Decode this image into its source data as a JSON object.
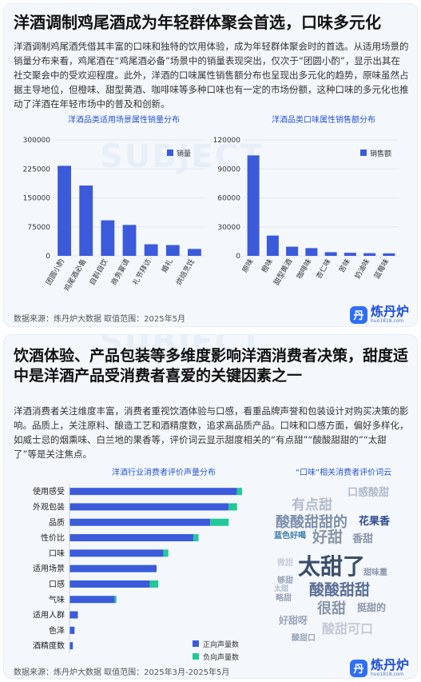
{
  "section1": {
    "title": "洋酒调制鸡尾酒成为年轻群体聚会首选，口味多元化",
    "paragraph": "洋酒调制鸡尾酒凭借其丰富的口味和独特的饮用体验，成为年轻群体聚会时的首选。从适用场景的销量分布来看，鸡尾酒在“鸡尾酒必备”场景中的销量表现突出，仅次于“团圆小酌”，显示出其在社交聚会中的受欢迎程度。此外，洋酒的口味属性销售额分布也呈现出多元化的趋势，原味虽然占据主导地位，但橙味、甜型黄酒、咖啡味等多种口味也有一定的市场份额，这种口味的多元化也推动了洋酒在年轻市场中的普及和创新。",
    "footer": "数据来源：炼丹炉大数据    取值范围：2025年5月"
  },
  "section2": {
    "title": "饮酒体验、产品包装等多维度影响洋酒消费者决策，甜度适中是洋酒产品受消费者喜爱的关键因素之一",
    "paragraph": "洋酒消费者关注维度丰富，消费者重视饮酒体验与口感，看重品牌声誉和包装设计对购买决策的影响。品质上，关注原料、酿造工艺和酒精度数，追求高品质产品。口味和口感方面，偏好多样化，如威士忌的烟熏味、白兰地的果香等，评价词云显示甜度相关的“有点甜”“酸酸甜甜的”“太甜了”等是关注焦点。",
    "footer": "数据来源：炼丹炉大数据    取值范围：2025年3月-2025年5月"
  },
  "logo": {
    "icon": "丹",
    "name": "炼丹炉",
    "url": "huo1818.com"
  },
  "watermark": "SUBJECT",
  "chart_data": [
    {
      "type": "bar",
      "title": "洋酒品类适用场景属性销量分布",
      "legend": "销量",
      "categories": [
        "团圆小酌",
        "鸡尾酒必备",
        "自斟自饮",
        "商务宴请",
        "礼节拜访",
        "婚礼",
        "烘焙烹饪"
      ],
      "values": [
        233000,
        182000,
        92000,
        80000,
        30000,
        28000,
        18000
      ],
      "yticks": [
        "300000",
        "225000",
        "150000",
        "75000",
        "0"
      ],
      "ylim": [
        0,
        300000
      ],
      "color": "#3b5bdb"
    },
    {
      "type": "bar",
      "title": "洋酒品类口味属性销售额分布",
      "legend": "销售额",
      "categories": [
        "原味",
        "橙味",
        "甜型黄酒",
        "咖啡味",
        "杏仁味",
        "苦味",
        "奶油味",
        "蓝莓味"
      ],
      "values": [
        104000,
        21000,
        9500,
        8000,
        3800,
        3200,
        2800,
        2600
      ],
      "yticks": [
        "120000",
        "90000",
        "60000",
        "30000",
        "0"
      ],
      "ylim": [
        0,
        120000
      ],
      "color": "#3b5bdb"
    },
    {
      "type": "bar",
      "orientation": "horizontal",
      "stacked": true,
      "title": "洋酒行业消费者评价声量分布",
      "categories": [
        "使用感受",
        "外观包装",
        "品质",
        "性价比",
        "口味",
        "适用场景",
        "口感",
        "气味",
        "适用人群",
        "色泽",
        "酒精度数"
      ],
      "series": [
        {
          "name": "正向声量数",
          "values": [
            100,
            95,
            84,
            74,
            56,
            52,
            48,
            27,
            5,
            3,
            2
          ],
          "color": "#3b5bdb"
        },
        {
          "name": "负向声量数",
          "values": [
            3,
            5,
            11,
            3,
            3,
            0,
            5,
            1,
            0,
            0,
            0
          ],
          "color": "#20c997"
        }
      ]
    }
  ],
  "wordcloud": {
    "title": "“口味”相关消费者评价词云",
    "words": [
      {
        "text": "有点甜",
        "color": "#b3bccb",
        "size": 17
      },
      {
        "text": "口感酸甜",
        "color": "#b3bccb",
        "size": 13
      },
      {
        "text": "酸酸甜甜的",
        "color": "#7e8faa",
        "size": 18
      },
      {
        "text": "花果香",
        "color": "#2f4a8a",
        "size": 13
      },
      {
        "text": "蓝色好喝",
        "color": "#3a7ba8",
        "size": 10
      },
      {
        "text": "好甜",
        "color": "#8a95a8",
        "size": 19
      },
      {
        "text": "香甜",
        "color": "#8a95a8",
        "size": 13
      },
      {
        "text": "微甜",
        "color": "#c9ced8",
        "size": 10
      },
      {
        "text": "太甜了",
        "color": "#3c4d6b",
        "size": 28
      },
      {
        "text": "甜味重",
        "color": "#8a95a8",
        "size": 10
      },
      {
        "text": "够甜",
        "color": "#9aa4b6",
        "size": 10
      },
      {
        "text": "太甜",
        "color": "#b3bccb",
        "size": 9
      },
      {
        "text": "略甜",
        "color": "#9aa4b6",
        "size": 10
      },
      {
        "text": "酸酸甜甜",
        "color": "#5b6f96",
        "size": 19
      },
      {
        "text": "很甜",
        "color": "#8a95a8",
        "size": 18
      },
      {
        "text": "挺甜的",
        "color": "#8a95a8",
        "size": 12
      },
      {
        "text": "好甜呀",
        "color": "#9aa4b6",
        "size": 12
      },
      {
        "text": "酸甜可口",
        "color": "#c4cad6",
        "size": 16
      },
      {
        "text": "酸甜口",
        "color": "#9aa4b6",
        "size": 10
      }
    ]
  }
}
